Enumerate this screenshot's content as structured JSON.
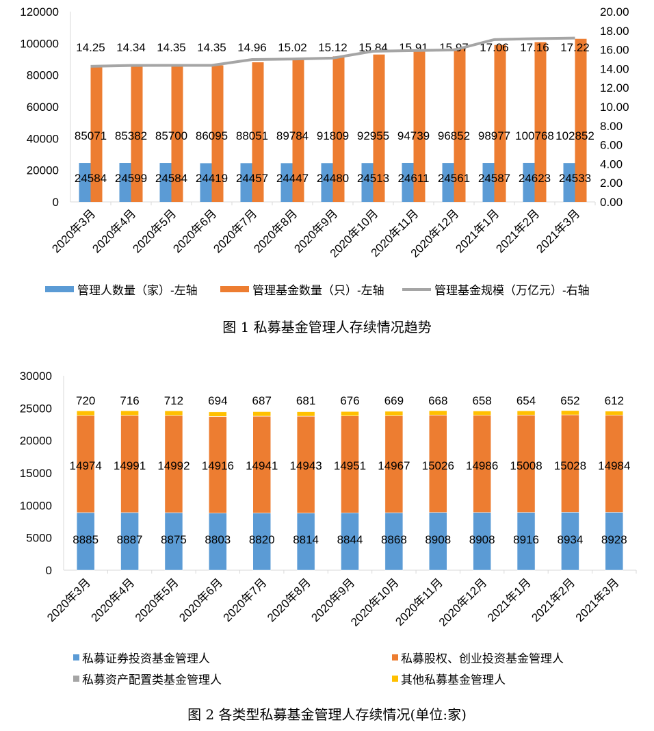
{
  "chart_data": [
    {
      "type": "bar+line",
      "title": "图 1 私募基金管理人存续情况趋势",
      "categories": [
        "2020年3月",
        "2020年4月",
        "2020年5月",
        "2020年6月",
        "2020年7月",
        "2020年8月",
        "2020年9月",
        "2020年10月",
        "2020年11月",
        "2020年12月",
        "2021年1月",
        "2021年2月",
        "2021年3月"
      ],
      "left_axis": {
        "ylim": [
          0,
          120000
        ],
        "ticks": [
          "0",
          "20000",
          "40000",
          "60000",
          "80000",
          "100000",
          "120000"
        ]
      },
      "right_axis": {
        "ylim": [
          0,
          20
        ],
        "ticks": [
          "0.00",
          "2.00",
          "4.00",
          "6.00",
          "8.00",
          "10.00",
          "12.00",
          "14.00",
          "16.00",
          "18.00",
          "20.00"
        ]
      },
      "series": [
        {
          "name": "管理人数量（家）-左轴",
          "type": "bar",
          "axis": "left",
          "color": "#5B9BD5",
          "values": [
            24584,
            24599,
            24584,
            24419,
            24457,
            24447,
            24480,
            24513,
            24611,
            24561,
            24587,
            24623,
            24533
          ]
        },
        {
          "name": "管理基金数量（只）-左轴",
          "type": "bar",
          "axis": "left",
          "color": "#ED7D31",
          "values": [
            85071,
            85382,
            85700,
            86095,
            88051,
            89784,
            91809,
            92955,
            94739,
            96852,
            98977,
            100768,
            102852
          ]
        },
        {
          "name": "管理基金规模（万亿元）-右轴",
          "type": "line",
          "axis": "right",
          "color": "#A5A5A5",
          "values": [
            14.25,
            14.34,
            14.35,
            14.35,
            14.96,
            15.02,
            15.12,
            15.84,
            15.91,
            15.97,
            17.06,
            17.16,
            17.22
          ],
          "labels": [
            "14.25",
            "14.34",
            "14.35",
            "14.35",
            "14.96",
            "15.02",
            "15.12",
            "15.84",
            "15.91",
            "15.97",
            "17.06",
            "17.16",
            "17.22"
          ]
        }
      ],
      "legend": "bottom"
    },
    {
      "type": "stacked-bar",
      "title": "图 2 各类型私募基金管理人存续情况(单位:家)",
      "categories": [
        "2020年3月",
        "2020年4月",
        "2020年5月",
        "2020年6月",
        "2020年7月",
        "2020年8月",
        "2020年9月",
        "2020年10月",
        "2020年11月",
        "2020年12月",
        "2021年1月",
        "2021年2月",
        "2021年3月"
      ],
      "ylim": [
        0,
        30000
      ],
      "ticks": [
        "0",
        "5000",
        "10000",
        "15000",
        "20000",
        "25000",
        "30000"
      ],
      "series": [
        {
          "name": "私募证券投资基金管理人",
          "color": "#5B9BD5",
          "values": [
            8885,
            8887,
            8875,
            8803,
            8820,
            8814,
            8844,
            8868,
            8908,
            8908,
            8916,
            8934,
            8928
          ],
          "labeled": true
        },
        {
          "name": "私募股权、创业投资基金管理人",
          "color": "#ED7D31",
          "values": [
            14974,
            14991,
            14992,
            14916,
            14941,
            14943,
            14951,
            14967,
            15026,
            14986,
            15008,
            15028,
            14984
          ],
          "labeled": true
        },
        {
          "name": "私募资产配置类基金管理人",
          "color": "#A5A5A5",
          "values": [
            5,
            5,
            5,
            6,
            9,
            9,
            9,
            9,
            9,
            9,
            9,
            9,
            9
          ],
          "labeled": false
        },
        {
          "name": "其他私募基金管理人",
          "color": "#FFC000",
          "values": [
            720,
            716,
            712,
            694,
            687,
            681,
            676,
            669,
            668,
            658,
            654,
            652,
            612
          ],
          "labeled": true
        }
      ],
      "legend": "bottom"
    }
  ]
}
